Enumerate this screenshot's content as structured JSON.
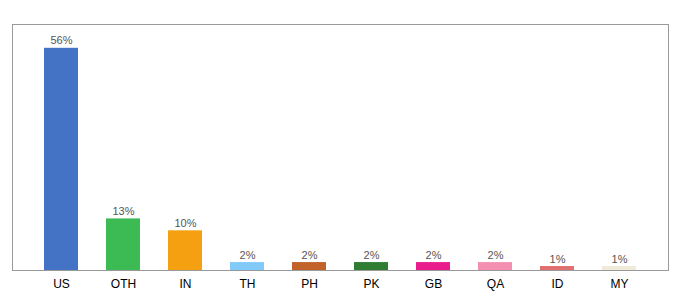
{
  "chart_data": {
    "type": "bar",
    "categories": [
      "US",
      "OTH",
      "IN",
      "TH",
      "PH",
      "PK",
      "GB",
      "QA",
      "ID",
      "MY"
    ],
    "values": [
      56,
      13,
      10,
      2,
      2,
      2,
      2,
      2,
      1,
      1
    ],
    "value_labels": [
      "56%",
      "13%",
      "10%",
      "2%",
      "2%",
      "2%",
      "2%",
      "2%",
      "1%",
      "1%"
    ],
    "colors": [
      "#4472c4",
      "#3cba54",
      "#f4a010",
      "#82cafa",
      "#c0622a",
      "#2e7d32",
      "#e91e8c",
      "#f48fb1",
      "#e07070",
      "#f0ead8"
    ],
    "ylim": [
      0,
      62
    ],
    "data_labels": true,
    "tick_labels": "x",
    "grid": false
  }
}
